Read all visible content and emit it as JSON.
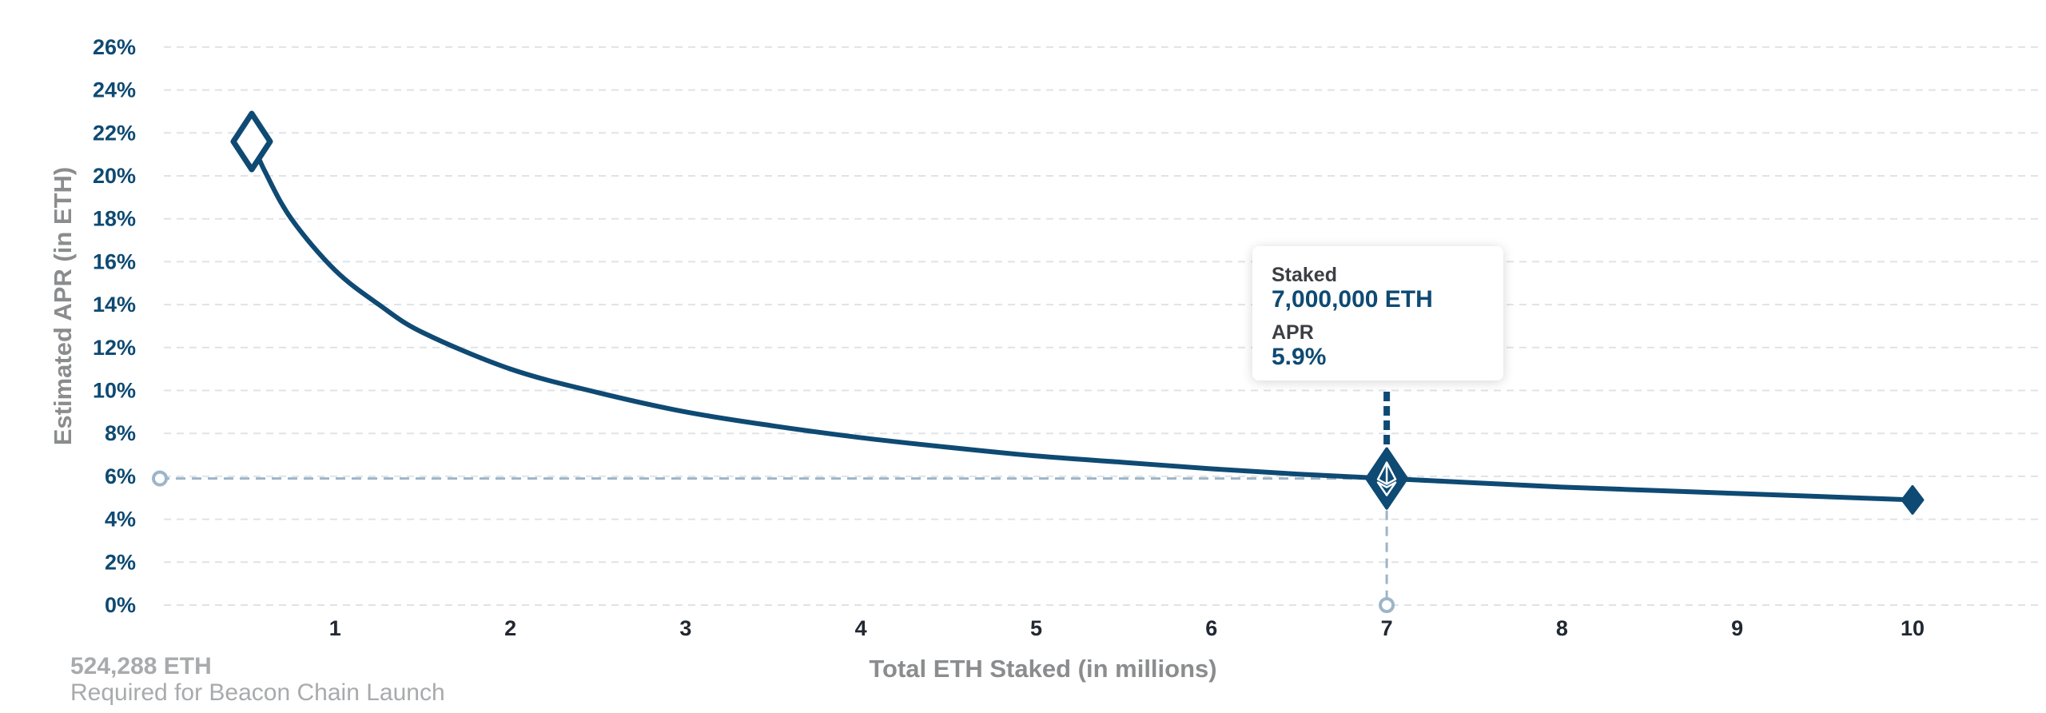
{
  "chart_data": {
    "type": "line",
    "title": "",
    "xlabel": "Total ETH Staked  (in millions)",
    "ylabel": "Estimated APR (in ETH)",
    "x_ticks": [
      1,
      2,
      3,
      4,
      5,
      6,
      7,
      8,
      9,
      10
    ],
    "x_tick_labels": [
      "1",
      "2",
      "3",
      "4",
      "5",
      "6",
      "7",
      "8",
      "9",
      "10"
    ],
    "y_ticks": [
      0,
      2,
      4,
      6,
      8,
      10,
      12,
      14,
      16,
      18,
      20,
      22,
      24,
      26
    ],
    "y_tick_labels": [
      "0%",
      "2%",
      "4%",
      "6%",
      "8%",
      "10%",
      "12%",
      "14%",
      "16%",
      "18%",
      "20%",
      "22%",
      "24%",
      "26%"
    ],
    "xlim": [
      0,
      11.2
    ],
    "ylim": [
      0,
      26
    ],
    "grid": true,
    "series": [
      {
        "x": [
          0.524288,
          0.6,
          0.75,
          1,
          1.25,
          1.5,
          2,
          2.5,
          3,
          3.5,
          4,
          4.5,
          5,
          5.5,
          6,
          6.5,
          7,
          7.5,
          8,
          8.5,
          9,
          9.5,
          10
        ],
        "y": [
          21.6,
          20.2,
          18.0,
          15.6,
          14.0,
          12.7,
          11.0,
          9.9,
          9.0,
          8.35,
          7.8,
          7.35,
          6.95,
          6.65,
          6.35,
          6.1,
          5.9,
          5.7,
          5.5,
          5.35,
          5.2,
          5.05,
          4.9
        ]
      }
    ],
    "start_marker": {
      "x": 0.524288,
      "y": 21.6
    },
    "end_marker": {
      "x": 10,
      "y": 4.9
    },
    "highlight": {
      "x": 7,
      "y": 5.9
    },
    "tooltip": {
      "staked_label": "Staked",
      "staked_value": "7,000,000 ETH",
      "apr_label": "APR",
      "apr_value": "5.9%"
    },
    "annotation": {
      "value": "524,288 ETH",
      "caption": "Required for Beacon Chain Launch"
    }
  },
  "colors": {
    "line": "#0e4a73",
    "guide": "#9db5c8",
    "grid": "#dfe3e7"
  }
}
